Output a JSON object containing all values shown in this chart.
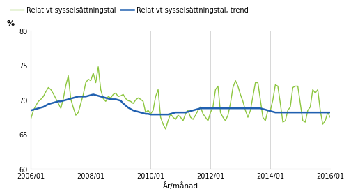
{
  "title": "",
  "ylabel": "%",
  "xlabel": "År/månad",
  "ylim": [
    60,
    80
  ],
  "yticks": [
    60,
    65,
    70,
    75,
    80
  ],
  "xlim": [
    0,
    120
  ],
  "xtick_positions": [
    0,
    24,
    48,
    72,
    96,
    120
  ],
  "xtick_labels": [
    "2006/01",
    "2008/01",
    "2010/01",
    "2012/01",
    "2014/01",
    "2016/01"
  ],
  "legend_label_green": "Relativt sysselsättningstal",
  "legend_label_blue": "Relativt sysselsättningstal, trend",
  "line_color_green": "#8DC63F",
  "line_color_blue": "#2060B0",
  "background_color": "#ffffff",
  "grid_color": "#c8c8c8",
  "raw_values": [
    67.3,
    68.5,
    69.2,
    69.8,
    70.1,
    70.5,
    71.2,
    71.8,
    71.5,
    70.9,
    70.2,
    69.5,
    68.8,
    70.2,
    72.1,
    73.5,
    70.1,
    68.9,
    67.8,
    68.2,
    69.5,
    70.8,
    72.5,
    73.0,
    72.8,
    73.9,
    72.5,
    74.8,
    71.5,
    70.2,
    69.8,
    70.5,
    70.3,
    70.8,
    71.0,
    70.5,
    70.6,
    70.8,
    70.2,
    69.9,
    69.8,
    69.5,
    70.0,
    70.3,
    70.1,
    69.8,
    68.2,
    68.5,
    68.0,
    68.5,
    70.5,
    71.5,
    67.5,
    66.5,
    65.8,
    67.0,
    68.0,
    67.5,
    67.2,
    67.8,
    67.5,
    67.0,
    68.0,
    68.5,
    67.5,
    67.2,
    67.8,
    68.5,
    69.0,
    68.0,
    67.5,
    67.0,
    68.2,
    69.0,
    71.5,
    72.0,
    68.2,
    67.5,
    67.0,
    67.8,
    69.5,
    71.8,
    72.8,
    72.0,
    70.8,
    69.8,
    68.5,
    67.5,
    68.5,
    70.5,
    72.5,
    72.5,
    70.0,
    67.5,
    67.0,
    68.5,
    68.5,
    70.0,
    72.2,
    72.0,
    69.5,
    66.8,
    67.0,
    68.5,
    69.0,
    71.8,
    72.0,
    72.0,
    69.5,
    67.0,
    66.8,
    68.5,
    69.0,
    71.5,
    71.0,
    71.5,
    68.5,
    66.5,
    67.0,
    68.2,
    67.5
  ],
  "trend_values": [
    68.5,
    68.6,
    68.7,
    68.8,
    68.9,
    69.0,
    69.2,
    69.4,
    69.5,
    69.6,
    69.7,
    69.8,
    69.8,
    69.9,
    70.0,
    70.1,
    70.2,
    70.3,
    70.4,
    70.5,
    70.5,
    70.5,
    70.5,
    70.6,
    70.7,
    70.8,
    70.7,
    70.6,
    70.5,
    70.4,
    70.3,
    70.2,
    70.1,
    70.1,
    70.1,
    70.0,
    69.9,
    69.5,
    69.2,
    68.9,
    68.7,
    68.5,
    68.4,
    68.3,
    68.2,
    68.1,
    68.0,
    68.0,
    67.9,
    67.9,
    67.9,
    67.9,
    67.9,
    67.9,
    67.9,
    67.9,
    68.0,
    68.1,
    68.2,
    68.2,
    68.2,
    68.2,
    68.2,
    68.3,
    68.4,
    68.5,
    68.6,
    68.7,
    68.8,
    68.8,
    68.8,
    68.8,
    68.8,
    68.8,
    68.8,
    68.8,
    68.8,
    68.8,
    68.8,
    68.8,
    68.8,
    68.8,
    68.8,
    68.8,
    68.8,
    68.8,
    68.8,
    68.8,
    68.8,
    68.8,
    68.8,
    68.8,
    68.8,
    68.7,
    68.6,
    68.5,
    68.4,
    68.3,
    68.2,
    68.2,
    68.2,
    68.2,
    68.2,
    68.2,
    68.2,
    68.2,
    68.2,
    68.2,
    68.2,
    68.2,
    68.2,
    68.2,
    68.2,
    68.2,
    68.2,
    68.2,
    68.2,
    68.2,
    68.2,
    68.2,
    68.2
  ]
}
